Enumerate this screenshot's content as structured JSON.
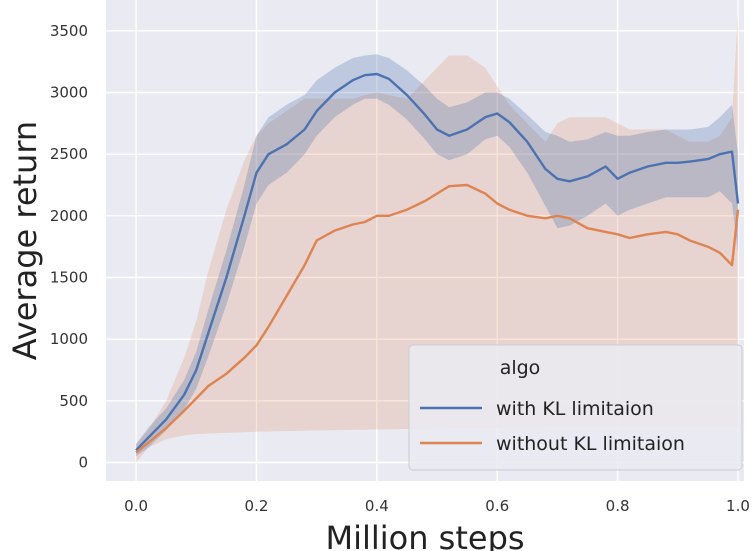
{
  "chart_data": {
    "type": "line",
    "title": "",
    "xlabel": "Million steps",
    "ylabel": "Average return",
    "xlim": [
      -0.05,
      1.01
    ],
    "ylim": [
      -150,
      3750
    ],
    "x_ticks": [
      0.0,
      0.2,
      0.4,
      0.6,
      0.8,
      1.0
    ],
    "x_tick_labels": [
      "0.0",
      "0.2",
      "0.4",
      "0.6",
      "0.8",
      "1.0"
    ],
    "y_ticks": [
      0,
      500,
      1000,
      1500,
      2000,
      2500,
      3000,
      3500
    ],
    "y_tick_labels": [
      "0",
      "500",
      "1000",
      "1500",
      "2000",
      "2500",
      "3000",
      "3500"
    ],
    "grid": true,
    "background": "#eaeaf2",
    "legend": {
      "title": "algo",
      "position": "bottom-right",
      "entries": [
        "with KL limitaion",
        "without KL limitaion"
      ]
    },
    "series": [
      {
        "name": "with KL limitaion",
        "color": "#4c72b0",
        "x": [
          0.0,
          0.02,
          0.05,
          0.08,
          0.1,
          0.12,
          0.15,
          0.18,
          0.2,
          0.22,
          0.25,
          0.28,
          0.3,
          0.33,
          0.36,
          0.38,
          0.4,
          0.42,
          0.45,
          0.48,
          0.5,
          0.52,
          0.55,
          0.58,
          0.6,
          0.62,
          0.65,
          0.68,
          0.7,
          0.72,
          0.75,
          0.78,
          0.8,
          0.82,
          0.85,
          0.88,
          0.9,
          0.92,
          0.95,
          0.97,
          0.99,
          1.0
        ],
        "y": [
          100,
          200,
          350,
          550,
          750,
          1050,
          1500,
          2000,
          2350,
          2500,
          2580,
          2700,
          2850,
          3000,
          3100,
          3140,
          3150,
          3110,
          2980,
          2820,
          2700,
          2650,
          2700,
          2800,
          2830,
          2760,
          2600,
          2380,
          2300,
          2280,
          2320,
          2400,
          2300,
          2350,
          2400,
          2430,
          2430,
          2440,
          2460,
          2500,
          2520,
          2100
        ],
        "lower": [
          50,
          120,
          260,
          430,
          600,
          860,
          1280,
          1750,
          2100,
          2250,
          2350,
          2500,
          2650,
          2800,
          2900,
          2950,
          2950,
          2900,
          2780,
          2620,
          2500,
          2450,
          2500,
          2620,
          2650,
          2560,
          2350,
          2080,
          1900,
          1920,
          2000,
          2100,
          2000,
          2050,
          2100,
          2150,
          2150,
          2150,
          2150,
          2200,
          2100,
          1700
        ],
        "upper": [
          150,
          280,
          440,
          670,
          900,
          1240,
          1720,
          2250,
          2650,
          2800,
          2900,
          2980,
          3100,
          3200,
          3280,
          3300,
          3310,
          3280,
          3180,
          3050,
          2950,
          2880,
          2920,
          3000,
          3000,
          2950,
          2820,
          2680,
          2650,
          2600,
          2620,
          2680,
          2650,
          2650,
          2680,
          2700,
          2700,
          2700,
          2720,
          2800,
          2900,
          2500
        ]
      },
      {
        "name": "without KL limitaion",
        "color": "#dd8452",
        "x": [
          0.0,
          0.02,
          0.05,
          0.08,
          0.1,
          0.12,
          0.15,
          0.18,
          0.2,
          0.22,
          0.25,
          0.28,
          0.3,
          0.33,
          0.36,
          0.38,
          0.4,
          0.42,
          0.45,
          0.48,
          0.5,
          0.52,
          0.55,
          0.58,
          0.6,
          0.62,
          0.65,
          0.68,
          0.7,
          0.72,
          0.75,
          0.78,
          0.8,
          0.82,
          0.85,
          0.88,
          0.9,
          0.92,
          0.95,
          0.97,
          0.99,
          1.0
        ],
        "y": [
          80,
          160,
          280,
          420,
          520,
          620,
          720,
          850,
          950,
          1100,
          1350,
          1600,
          1800,
          1880,
          1930,
          1950,
          2000,
          2000,
          2050,
          2120,
          2180,
          2240,
          2250,
          2180,
          2100,
          2050,
          2000,
          1980,
          2000,
          1980,
          1900,
          1870,
          1850,
          1820,
          1850,
          1870,
          1850,
          1800,
          1750,
          1700,
          1600,
          2050
        ],
        "lower": [
          0,
          120,
          190,
          220,
          230,
          235,
          240,
          245,
          250,
          252,
          255,
          258,
          260,
          262,
          265,
          266,
          268,
          270,
          272,
          274,
          276,
          278,
          280,
          282,
          283,
          284,
          285,
          286,
          287,
          288,
          289,
          290,
          290,
          290,
          290,
          290,
          290,
          290,
          290,
          290,
          290,
          300
        ],
        "upper": [
          150,
          260,
          500,
          850,
          1150,
          1550,
          2050,
          2450,
          2650,
          2750,
          2850,
          2950,
          2950,
          2950,
          2950,
          2980,
          3000,
          2980,
          2950,
          3100,
          3200,
          3300,
          3300,
          3200,
          3050,
          2900,
          2750,
          2600,
          2750,
          2800,
          2800,
          2800,
          2750,
          2700,
          2700,
          2700,
          2650,
          2600,
          2600,
          2650,
          2800,
          3650
        ]
      }
    ]
  }
}
